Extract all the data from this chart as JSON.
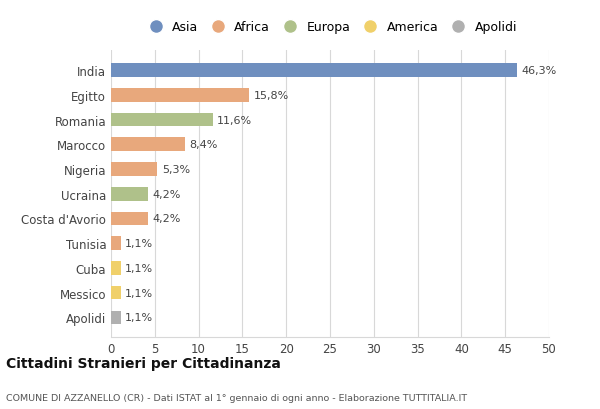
{
  "categories": [
    "India",
    "Egitto",
    "Romania",
    "Marocco",
    "Nigeria",
    "Ucraina",
    "Costa d'Avorio",
    "Tunisia",
    "Cuba",
    "Messico",
    "Apolidi"
  ],
  "values": [
    46.3,
    15.8,
    11.6,
    8.4,
    5.3,
    4.2,
    4.2,
    1.1,
    1.1,
    1.1,
    1.1
  ],
  "labels": [
    "46,3%",
    "15,8%",
    "11,6%",
    "8,4%",
    "5,3%",
    "4,2%",
    "4,2%",
    "1,1%",
    "1,1%",
    "1,1%",
    "1,1%"
  ],
  "colors": [
    "#6f8fbf",
    "#e8a87c",
    "#afc18a",
    "#e8a87c",
    "#e8a87c",
    "#afc18a",
    "#e8a87c",
    "#e8a87c",
    "#f0d06a",
    "#f0d06a",
    "#b0b0b0"
  ],
  "legend_labels": [
    "Asia",
    "Africa",
    "Europa",
    "America",
    "Apolidi"
  ],
  "legend_colors": [
    "#6f8fbf",
    "#e8a87c",
    "#afc18a",
    "#f0d06a",
    "#b0b0b0"
  ],
  "title": "Cittadini Stranieri per Cittadinanza",
  "subtitle": "COMUNE DI AZZANELLO (CR) - Dati ISTAT al 1° gennaio di ogni anno - Elaborazione TUTTITALIA.IT",
  "xlim": [
    0,
    50
  ],
  "xticks": [
    0,
    5,
    10,
    15,
    20,
    25,
    30,
    35,
    40,
    45,
    50
  ],
  "background_color": "#ffffff",
  "grid_color": "#d8d8d8",
  "bar_height": 0.55
}
